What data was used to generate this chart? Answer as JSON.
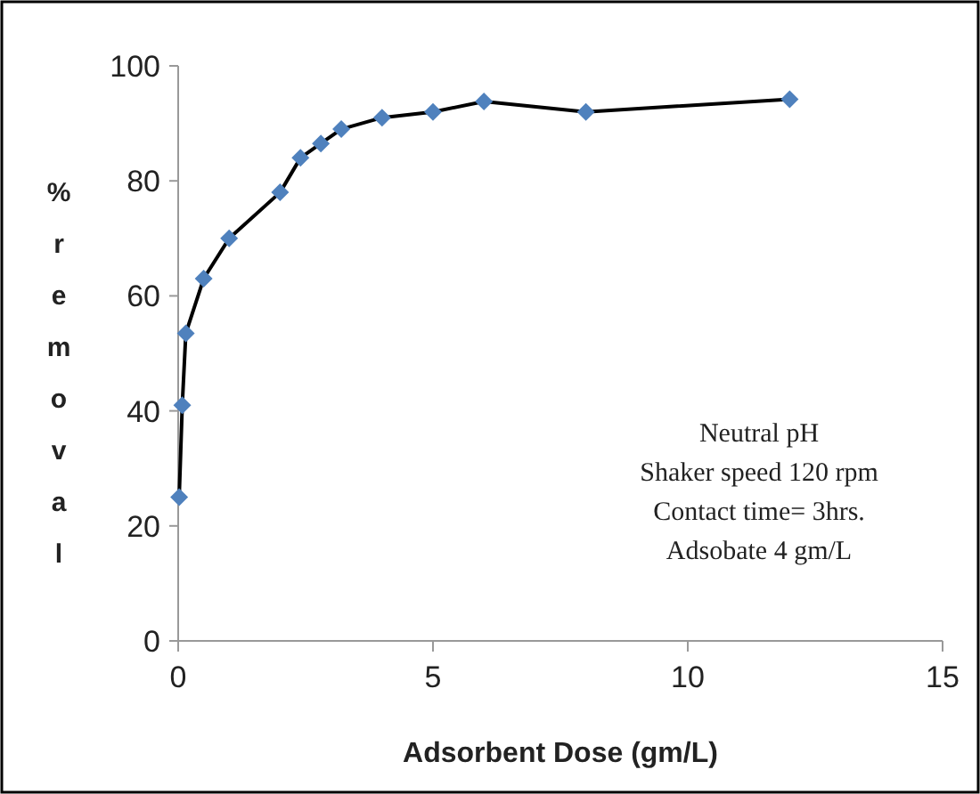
{
  "chart_data": {
    "type": "line",
    "xlabel": "Adsorbent Dose (gm/L)",
    "ylabel": "% removal",
    "x": [
      0.02,
      0.08,
      0.15,
      0.5,
      1,
      2,
      2.4,
      2.8,
      3.2,
      4,
      5,
      6,
      8,
      12
    ],
    "series": [
      {
        "color": "#4f81bd",
        "values": [
          25,
          41,
          53.5,
          63,
          70,
          78,
          84,
          86.5,
          89,
          91,
          92,
          93.8,
          92,
          94.2
        ]
      }
    ],
    "xlim": [
      0,
      15
    ],
    "xticks": [
      0,
      5,
      10,
      15
    ],
    "ylim": [
      0,
      100
    ],
    "yticks": [
      0,
      20,
      40,
      60,
      80,
      100
    ],
    "marker": "diamond",
    "line_style": "solid",
    "annotations": [
      "Neutral pH\nShaker speed 120 rpm\nContact time= 3hrs.\nAdsobate 4 gm/L"
    ]
  }
}
